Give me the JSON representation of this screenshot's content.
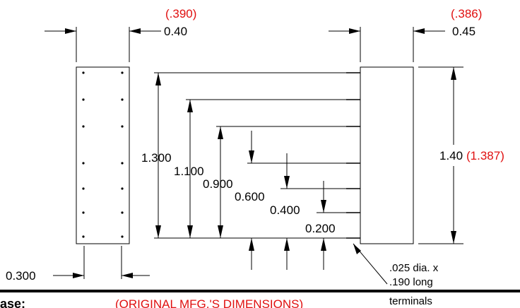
{
  "dims": {
    "width_left": "0.40",
    "width_left_orig": "(.390)",
    "width_right": "0.45",
    "width_right_orig": "(.386)",
    "height_right": "1.40",
    "height_right_orig": "(1.387)",
    "pin_span": "0.300",
    "d1300": "1.300",
    "d1100": "1.100",
    "d0900": "0.900",
    "d0600": "0.600",
    "d0400": "0.400",
    "d0200": "0.200"
  },
  "notes": {
    "terminal_line1": ".025 dia. x",
    "terminal_line2": ".190 long",
    "terminal_line3": "terminals",
    "case_label": "ase:",
    "orig_mfg": "(ORIGINAL MFG.'S DIMENSIONS)"
  }
}
